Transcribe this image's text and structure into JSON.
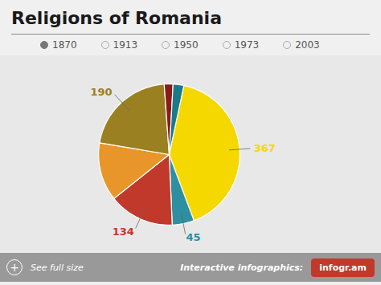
{
  "chart_data": {
    "type": "pie",
    "title": "Religions of Romania",
    "values": [
      367,
      45,
      134,
      120,
      190,
      18,
      22
    ],
    "colors": [
      "#f5d800",
      "#2e8fa0",
      "#c0392b",
      "#e8952a",
      "#9a8020",
      "#8b1a1a",
      "#1a7a8a"
    ],
    "value_labels": [
      "367",
      "45",
      "134",
      null,
      "190",
      null,
      null
    ],
    "radio_options": [
      "1870",
      "1913",
      "1950",
      "1973",
      "2003"
    ],
    "selected": "1870",
    "annotations": [
      "+",
      "See full size",
      "Interactive infographics:",
      "infogr.am"
    ]
  }
}
